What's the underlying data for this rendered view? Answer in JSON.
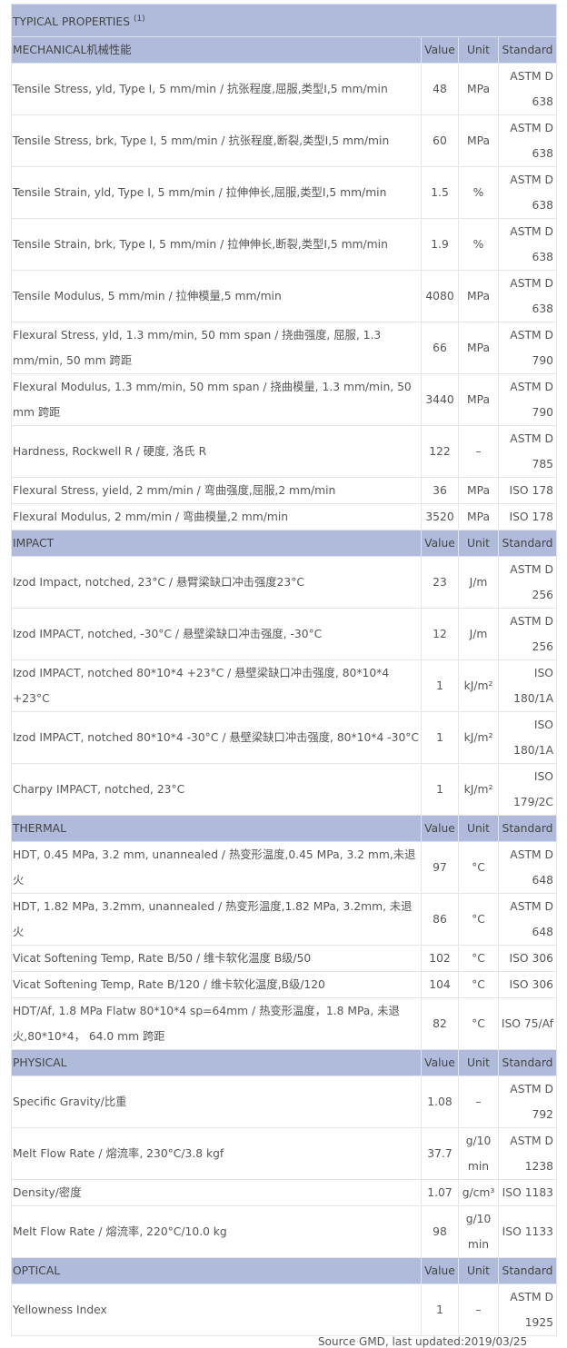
{
  "title": "TYPICAL PROPERTIES",
  "title_note": "(1)",
  "columns": {
    "value": "Value",
    "unit": "Unit",
    "standard": "Standard"
  },
  "sections": [
    {
      "name": "MECHANICAL机械性能",
      "rows": [
        [
          "Tensile Stress, yld, Type I, 5 mm/min / 抗张程度,屈服,类型I,5 mm/min",
          "48",
          "MPa",
          "ASTM D 638"
        ],
        [
          "Tensile Stress, brk, Type I, 5 mm/min / 抗张程度,断裂,类型I,5 mm/min",
          "60",
          "MPa",
          "ASTM D 638"
        ],
        [
          "Tensile Strain, yld, Type I, 5 mm/min / 拉伸伸长,屈服,类型I,5 mm/min",
          "1.5",
          "%",
          "ASTM D 638"
        ],
        [
          "Tensile Strain, brk, Type I, 5 mm/min / 拉伸伸长,断裂,类型I,5 mm/min",
          "1.9",
          "%",
          "ASTM D 638"
        ],
        [
          "Tensile Modulus, 5 mm/min / 拉伸模量,5 mm/min",
          "4080",
          "MPa",
          "ASTM D 638"
        ],
        [
          "Flexural Stress, yld, 1.3 mm/min, 50 mm span / 挠曲强度, 屈服, 1.3 mm/min, 50 mm 跨距",
          "66",
          "MPa",
          "ASTM D 790"
        ],
        [
          "Flexural Modulus, 1.3 mm/min, 50 mm span / 挠曲模量, 1.3 mm/min, 50 mm 跨距",
          "3440",
          "MPa",
          "ASTM D 790"
        ],
        [
          "Hardness, Rockwell R / 硬度, 洛氏 R",
          "122",
          "–",
          "ASTM D 785"
        ],
        [
          "Flexural Stress, yield, 2 mm/min / 弯曲强度,屈服,2 mm/min",
          "36",
          "MPa",
          "ISO 178"
        ],
        [
          "Flexural Modulus, 2 mm/min / 弯曲模量,2 mm/min",
          "3520",
          "MPa",
          "ISO 178"
        ]
      ]
    },
    {
      "name": "IMPACT",
      "rows": [
        [
          "Izod Impact, notched, 23°C / 悬臂梁缺口冲击强度23°C",
          "23",
          "J/m",
          "ASTM D 256"
        ],
        [
          "Izod IMPACT, notched, -30°C / 悬壁梁缺口冲击强度, -30°C",
          "12",
          "J/m",
          "ASTM D 256"
        ],
        [
          "Izod IMPACT, notched 80*10*4 +23°C / 悬壁梁缺口冲击强度, 80*10*4 +23°C",
          "1",
          "kJ/m²",
          "ISO 180/1A"
        ],
        [
          "Izod IMPACT, notched 80*10*4 -30°C / 悬壁梁缺口冲击强度, 80*10*4 -30°C",
          "1",
          "kJ/m²",
          "ISO 180/1A"
        ],
        [
          "Charpy IMPACT, notched, 23°C",
          "1",
          "kJ/m²",
          "ISO 179/2C"
        ]
      ]
    },
    {
      "name": "THERMAL",
      "rows": [
        [
          "HDT, 0.45 MPa, 3.2 mm, unannealed / 热变形温度,0.45 MPa, 3.2 mm,未退火",
          "97",
          "°C",
          "ASTM D 648"
        ],
        [
          "HDT, 1.82 MPa, 3.2mm, unannealed / 热变形温度,1.82 MPa, 3.2mm, 未退火",
          "86",
          "°C",
          "ASTM D 648"
        ],
        [
          "Vicat Softening Temp, Rate B/50 / 维卡软化温度 B级/50",
          "102",
          "°C",
          "ISO 306"
        ],
        [
          "Vicat Softening Temp, Rate B/120 / 维卡软化温度,B级/120",
          "104",
          "°C",
          "ISO 306"
        ],
        [
          "HDT/Af, 1.8 MPa Flatw 80*10*4 sp=64mm / 热变形温度，1.8 MPa, 未退火,80*10*4， 64.0 mm 跨距",
          "82",
          "°C",
          "ISO 75/Af"
        ]
      ]
    },
    {
      "name": "PHYSICAL",
      "rows": [
        [
          "Specific Gravity/比重",
          "1.08",
          "–",
          "ASTM D 792"
        ],
        [
          "Melt Flow Rate / 熔流率, 230°C/3.8 kgf",
          "37.7",
          "g/10 min",
          "ASTM D 1238"
        ],
        [
          "Density/密度",
          "1.07",
          "g/cm³",
          "ISO 1183"
        ],
        [
          "Melt Flow Rate / 熔流率, 220°C/10.0 kg",
          "98",
          "g/10 min",
          "ISO 1133"
        ]
      ]
    },
    {
      "name": "OPTICAL",
      "rows": [
        [
          "Yellowness Index",
          "1",
          "–",
          "ASTM D 1925"
        ]
      ]
    }
  ],
  "footer": "Source GMD, last updated:2019/03/25"
}
